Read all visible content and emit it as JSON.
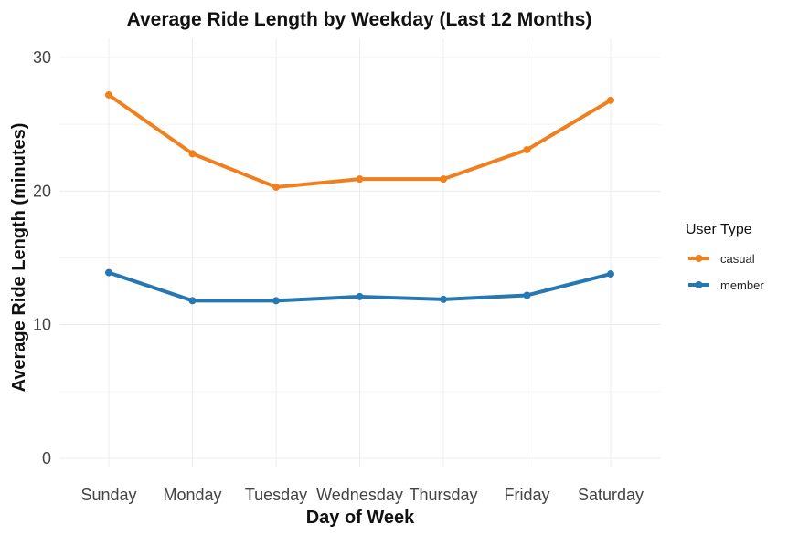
{
  "chart_data": {
    "type": "line",
    "title": "Average Ride Length by Weekday (Last 12 Months)",
    "xlabel": "Day of Week",
    "ylabel": "Average Ride Length (minutes)",
    "categories": [
      "Sunday",
      "Monday",
      "Tuesday",
      "Wednesday",
      "Thursday",
      "Friday",
      "Saturday"
    ],
    "series": [
      {
        "name": "casual",
        "color": "#f07f1e",
        "values": [
          27.2,
          22.8,
          20.3,
          20.9,
          20.9,
          23.1,
          26.8
        ]
      },
      {
        "name": "member",
        "color": "#2678b2",
        "values": [
          13.9,
          11.8,
          11.8,
          12.1,
          11.9,
          12.2,
          13.8
        ]
      }
    ],
    "ylim": [
      0,
      30
    ],
    "yticks": [
      0,
      10,
      20,
      30
    ],
    "grid": true,
    "legend": {
      "title": "User Type",
      "placement": "right"
    }
  }
}
